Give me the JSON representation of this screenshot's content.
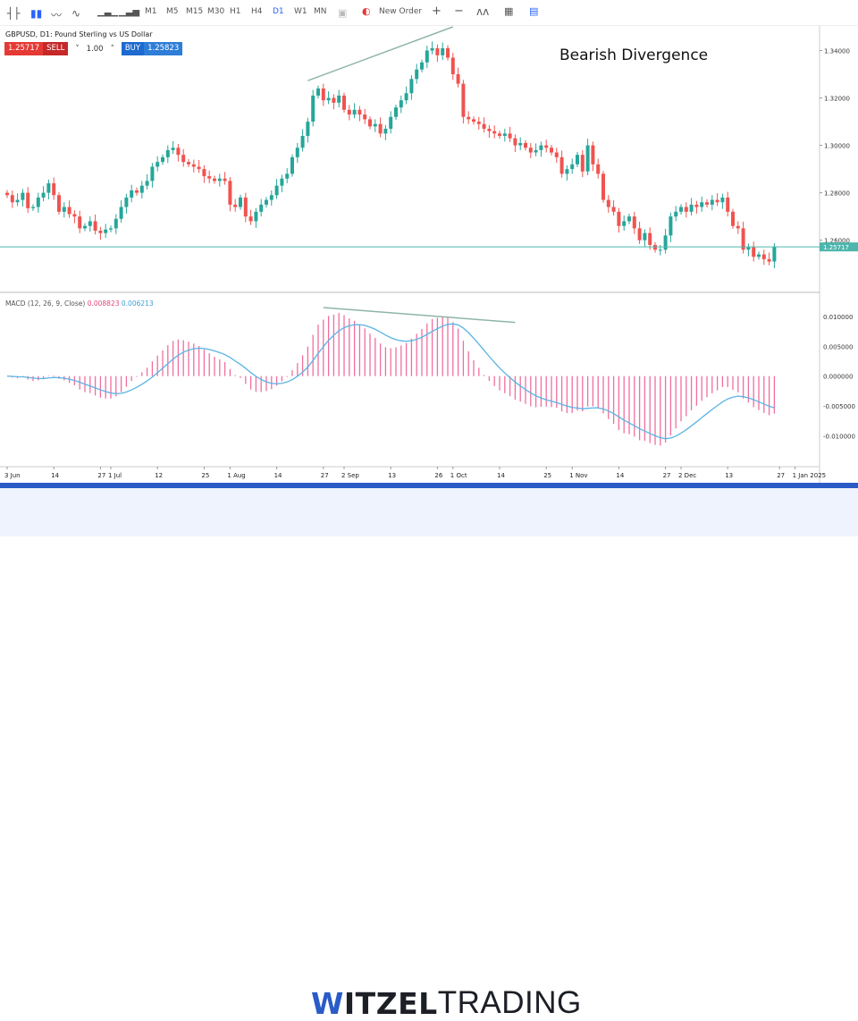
{
  "toolbar": {
    "timeframes": [
      "M1",
      "M5",
      "M15",
      "M30",
      "H1",
      "H4",
      "D1",
      "W1",
      "MN"
    ],
    "active_timeframe": "D1",
    "new_order": "New Order",
    "zoom_in": "+",
    "zoom_out": "−"
  },
  "symbol_info": "GBPUSD, D1: Pound Sterling vs US Dollar",
  "trade": {
    "sell_price": "1.25717",
    "sell_label": "SELL",
    "quantity": "1.00",
    "buy_label": "BUY",
    "buy_price": "1.25823"
  },
  "annotation": "Bearish Divergence",
  "macd": {
    "label": "MACD (12, 26, 9, Close)",
    "value1": "0.008823",
    "value2": "0.006213"
  },
  "logo": {
    "bold": "WITZEL",
    "light": "TRADING"
  },
  "colors": {
    "bull": "#26a69a",
    "bear": "#ef5350",
    "histogram": "#ef6f9f",
    "signal": "#5ab4e5",
    "price_line": "#4db6ac",
    "trendline": "#8fb5a8",
    "brand_blue": "#2a5bc7"
  },
  "chart_data": {
    "type": "candlestick",
    "symbol": "GBPUSD",
    "timeframe": "D1",
    "start_date": "2024-06-03",
    "close": [
      1.279,
      1.276,
      1.277,
      1.28,
      1.2735,
      1.274,
      1.278,
      1.28,
      1.284,
      1.279,
      1.272,
      1.274,
      1.271,
      1.27,
      1.265,
      1.266,
      1.268,
      1.264,
      1.263,
      1.2645,
      1.265,
      1.269,
      1.274,
      1.278,
      1.281,
      1.28,
      1.283,
      1.285,
      1.291,
      1.293,
      1.295,
      1.298,
      1.299,
      1.296,
      1.293,
      1.292,
      1.291,
      1.29,
      1.287,
      1.286,
      1.285,
      1.286,
      1.285,
      1.275,
      1.274,
      1.278,
      1.27,
      1.268,
      1.272,
      1.275,
      1.277,
      1.279,
      1.283,
      1.286,
      1.288,
      1.295,
      1.299,
      1.304,
      1.31,
      1.321,
      1.324,
      1.319,
      1.32,
      1.318,
      1.321,
      1.315,
      1.313,
      1.315,
      1.313,
      1.311,
      1.308,
      1.309,
      1.305,
      1.307,
      1.312,
      1.316,
      1.319,
      1.322,
      1.328,
      1.332,
      1.335,
      1.34,
      1.341,
      1.338,
      1.341,
      1.337,
      1.33,
      1.326,
      1.312,
      1.311,
      1.31,
      1.309,
      1.307,
      1.306,
      1.305,
      1.304,
      1.305,
      1.303,
      1.3,
      1.301,
      1.299,
      1.297,
      1.298,
      1.3,
      1.299,
      1.297,
      1.295,
      1.288,
      1.29,
      1.292,
      1.296,
      1.289,
      1.3,
      1.292,
      1.288,
      1.277,
      1.274,
      1.272,
      1.266,
      1.268,
      1.27,
      1.265,
      1.26,
      1.263,
      1.258,
      1.256,
      1.256,
      1.262,
      1.27,
      1.272,
      1.274,
      1.272,
      1.275,
      1.274,
      1.276,
      1.275,
      1.277,
      1.276,
      1.278,
      1.272,
      1.266,
      1.265,
      1.256,
      1.257,
      1.253,
      1.254,
      1.252,
      1.251,
      1.2572
    ],
    "current_price": 1.25717,
    "price_ticks": [
      "1.34000",
      "1.32000",
      "1.30000",
      "1.28000",
      "1.26000"
    ],
    "price_range": [
      1.238,
      1.35
    ],
    "macd_ticks": [
      "0.010000",
      "0.005000",
      "0.000000",
      "-0.005000",
      "-0.010000"
    ],
    "macd_range": [
      -0.0152,
      0.0139
    ],
    "x_ticks": [
      {
        "date": "2024-06-03",
        "label": "3 Jun"
      },
      {
        "date": "2024-06-14",
        "label": "14"
      },
      {
        "date": "2024-06-27",
        "label": "27"
      },
      {
        "date": "2024-07-01",
        "label": "1 Jul"
      },
      {
        "date": "2024-07-12",
        "label": "12"
      },
      {
        "date": "2024-07-25",
        "label": "25"
      },
      {
        "date": "2024-08-01",
        "label": "1 Aug"
      },
      {
        "date": "2024-08-14",
        "label": "14"
      },
      {
        "date": "2024-08-27",
        "label": "27"
      },
      {
        "date": "2024-09-02",
        "label": "2 Sep"
      },
      {
        "date": "2024-09-13",
        "label": "13"
      },
      {
        "date": "2024-09-26",
        "label": "26"
      },
      {
        "date": "2024-10-01",
        "label": "1 Oct"
      },
      {
        "date": "2024-10-14",
        "label": "14"
      },
      {
        "date": "2024-10-25",
        "label": "25"
      },
      {
        "date": "2024-11-01",
        "label": "1 Nov"
      },
      {
        "date": "2024-11-14",
        "label": "14"
      },
      {
        "date": "2024-11-27",
        "label": "27"
      },
      {
        "date": "2024-12-02",
        "label": "2 Dec"
      },
      {
        "date": "2024-12-13",
        "label": "13"
      },
      {
        "date": "2024-12-27",
        "label": "27"
      },
      {
        "date": "2025-01-01",
        "label": "1 Jan 2025"
      }
    ],
    "trendlines": [
      {
        "panel": "price",
        "from": {
          "date": "2024-08-22",
          "value": 1.3273
        },
        "to": {
          "date": "2024-10-01",
          "value": 1.35
        }
      },
      {
        "panel": "macd",
        "from": {
          "date": "2024-08-27",
          "value": 0.0115
        },
        "to": {
          "date": "2024-10-17",
          "value": 0.009
        }
      }
    ],
    "indicator": "MACD (12, 26, 9, Close)"
  }
}
